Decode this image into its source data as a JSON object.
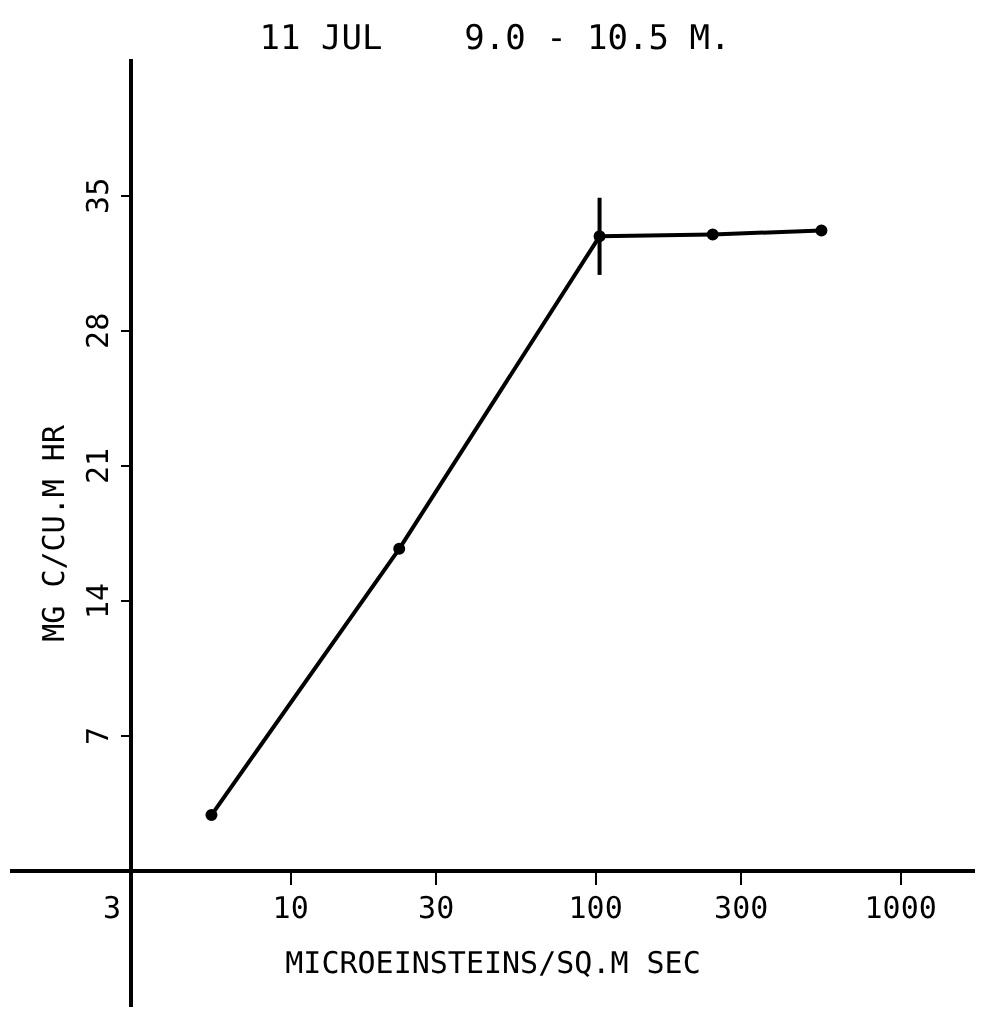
{
  "chart_data": {
    "type": "line",
    "title": "11 JUL    9.0 - 10.5 M.",
    "xlabel": "MICROEINSTEINS/SQ.M SEC",
    "ylabel": "MG C/CU.M HR",
    "log": "x",
    "x": [
      5.5,
      22.7,
      103,
      242,
      550
    ],
    "series": [
      {
        "color": "#000000",
        "values": [
          2.9,
          16.7,
          32.9,
          33.0,
          33.2
        ],
        "errors": [
          null,
          null,
          2,
          null,
          null
        ]
      }
    ],
    "xlim": [
      1.22,
      1740
    ],
    "xticks": [
      3,
      10,
      30,
      100,
      300,
      1000
    ],
    "ylim": [
      -7,
      42
    ],
    "yticks": [
      7,
      14,
      21,
      28,
      35
    ],
    "grid": false,
    "legend": false,
    "marker": "circle",
    "line_style": "solid"
  }
}
